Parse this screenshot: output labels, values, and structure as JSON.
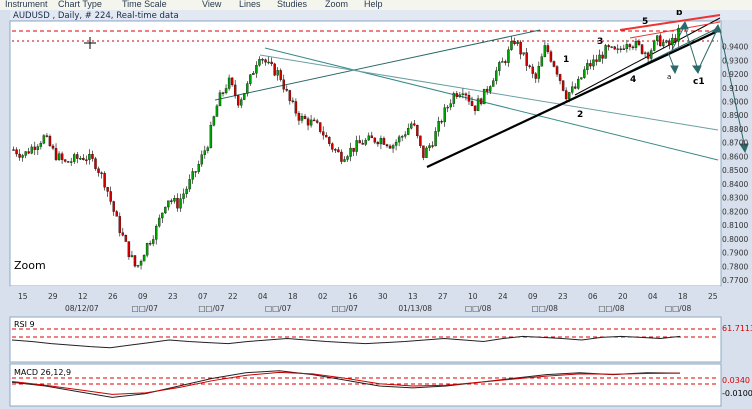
{
  "menu": [
    "Instrument",
    "Chart Type",
    "Time Scale",
    "View",
    "Lines",
    "Studies",
    "Zoom",
    "Help"
  ],
  "header": {
    "title": "AUDUSD , Daily, # 224, Real-time data",
    "zoom_label": "Zoom"
  },
  "colors": {
    "bg_panel": "#ffffff",
    "frame": "#8fa8c4",
    "header_bar": "#e3e9f3",
    "bull": "#00a000",
    "bear": "#cc0000",
    "dashed_level": "#dd0000",
    "trendline": "#000000",
    "channel": "#3a8a8a",
    "fan": "#ee3333"
  },
  "chart_data": [
    {
      "type": "candlestick",
      "title": "AUDUSD , Daily, # 224, Real-time data",
      "series": [
        {
          "name": "AUDUSD",
          "values": [
            0.865,
            0.861,
            0.868,
            0.874,
            0.862,
            0.855,
            0.858,
            0.86,
            0.855,
            0.84,
            0.815,
            0.795,
            0.778,
            0.795,
            0.808,
            0.83,
            0.825,
            0.838,
            0.852,
            0.87,
            0.9,
            0.915,
            0.9,
            0.913,
            0.935,
            0.925,
            0.92,
            0.9,
            0.888,
            0.885,
            0.88,
            0.868,
            0.86,
            0.865,
            0.87,
            0.872,
            0.873,
            0.868,
            0.875,
            0.885,
            0.86,
            0.872,
            0.89,
            0.905,
            0.91,
            0.895,
            0.905,
            0.92,
            0.93,
            0.945,
            0.93,
            0.915,
            0.94,
            0.925,
            0.905,
            0.91,
            0.925,
            0.93,
            0.938,
            0.935,
            0.945,
            0.94,
            0.935,
            0.945,
            0.94,
            0.95
          ]
        }
      ],
      "ylim": [
        0.77,
        0.955
      ],
      "y_ticks": [
        "0.9400",
        "0.9300",
        "0.9200",
        "0.9100",
        "0.9000",
        "0.8900",
        "0.8800",
        "0.8700",
        "0.8600",
        "0.8500",
        "0.8400",
        "0.8300",
        "0.8200",
        "0.8100",
        "0.8000",
        "0.7900",
        "0.7800",
        "0.7700"
      ],
      "x_ticks": [
        "15",
        "29",
        "12",
        "26",
        "09",
        "23",
        "07",
        "22",
        "04",
        "18",
        "02",
        "16",
        "30",
        "13",
        "27",
        "10",
        "24",
        "09",
        "23",
        "06",
        "20",
        "04",
        "18",
        "25"
      ],
      "x_date_labels": [
        "08/12/07",
        "□□/07",
        "□□/07",
        "□□/07",
        "□□/07",
        "01/13/08",
        "□□/08",
        "□□/08",
        "□□/08",
        "□□/08"
      ],
      "annotations": [
        "1",
        "2",
        "3",
        "4",
        "5",
        "b",
        "a",
        "c1"
      ],
      "levels": [
        0.948,
        0.94
      ],
      "grid": false
    },
    {
      "type": "line",
      "title": "RSI 9",
      "value_label": "61.7113",
      "levels": [
        "70",
        "30"
      ],
      "series": [
        {
          "name": "RSI",
          "values": [
            55,
            52,
            48,
            45,
            42,
            40,
            45,
            50,
            55,
            52,
            50,
            48,
            52,
            55,
            58,
            55,
            52,
            50,
            48,
            50,
            52,
            55,
            58,
            55,
            52,
            58,
            62,
            60,
            58,
            55,
            60,
            62,
            60,
            58,
            62
          ]
        }
      ]
    },
    {
      "type": "line",
      "title": "MACD 26,12,9",
      "value_labels": [
        "0.0340",
        "-0.0100"
      ],
      "series": [
        {
          "name": "MACD",
          "values": [
            0.01,
            0.0,
            -0.015,
            -0.03,
            -0.02,
            0.0,
            0.02,
            0.035,
            0.04,
            0.03,
            0.015,
            0.0,
            -0.005,
            0.0,
            0.01,
            0.02,
            0.03,
            0.035,
            0.03,
            0.035,
            0.034
          ]
        },
        {
          "name": "Signal",
          "values": [
            0.012,
            0.002,
            -0.01,
            -0.022,
            -0.018,
            -0.004,
            0.014,
            0.028,
            0.036,
            0.032,
            0.02,
            0.006,
            0.0,
            0.002,
            0.01,
            0.018,
            0.026,
            0.032,
            0.031,
            0.033,
            0.034
          ]
        }
      ]
    }
  ]
}
